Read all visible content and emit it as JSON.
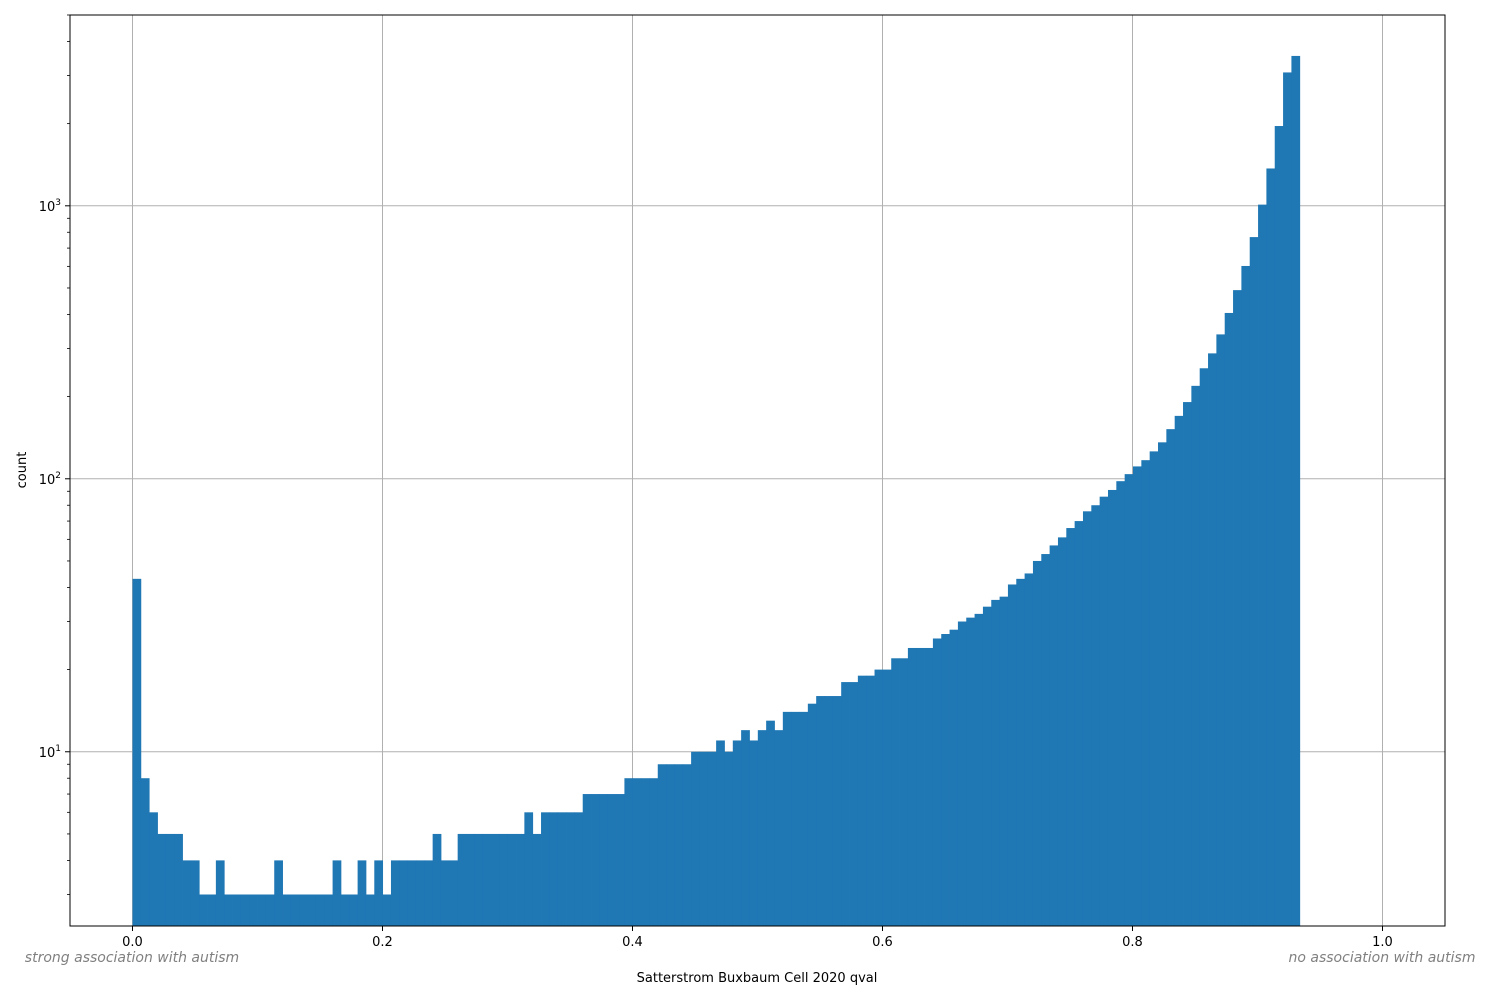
{
  "chart_data": {
    "type": "bar",
    "title": "",
    "xlabel": "Satterstrom Buxbaum Cell 2020 qval",
    "ylabel": "count",
    "xlim": [
      -0.05,
      1.05
    ],
    "ylim": [
      2.3,
      5000
    ],
    "yscale": "log",
    "grid": true,
    "bar_color": "#1f77b4",
    "bin_width": 0.00667,
    "bin_start": 0.0,
    "x_ticks": [
      {
        "value": 0.0,
        "label": "0.0"
      },
      {
        "value": 0.2,
        "label": "0.2"
      },
      {
        "value": 0.4,
        "label": "0.4"
      },
      {
        "value": 0.6,
        "label": "0.6"
      },
      {
        "value": 0.8,
        "label": "0.8"
      },
      {
        "value": 1.0,
        "label": "1.0"
      }
    ],
    "y_ticks": [
      {
        "value": 10,
        "base": "10",
        "exp": "1"
      },
      {
        "value": 100,
        "base": "10",
        "exp": "2"
      },
      {
        "value": 1000,
        "base": "10",
        "exp": "3"
      }
    ],
    "annotations": {
      "left": "strong association with autism",
      "right": "no association with autism"
    },
    "values": [
      43,
      8,
      6,
      5,
      5,
      5,
      4,
      4,
      3,
      3,
      4,
      3,
      3,
      3,
      3,
      3,
      3,
      4,
      3,
      3,
      3,
      3,
      3,
      3,
      4,
      3,
      3,
      4,
      3,
      4,
      3,
      4,
      4,
      4,
      4,
      4,
      5,
      4,
      4,
      5,
      5,
      5,
      5,
      5,
      5,
      5,
      5,
      6,
      5,
      6,
      6,
      6,
      6,
      6,
      7,
      7,
      7,
      7,
      7,
      8,
      8,
      8,
      8,
      9,
      9,
      9,
      9,
      10,
      10,
      10,
      11,
      10,
      11,
      12,
      11,
      12,
      13,
      12,
      14,
      14,
      14,
      15,
      16,
      16,
      16,
      18,
      18,
      19,
      19,
      20,
      20,
      22,
      22,
      24,
      24,
      24,
      26,
      27,
      28,
      30,
      31,
      32,
      34,
      36,
      37,
      41,
      43,
      45,
      50,
      53,
      57,
      61,
      66,
      70,
      76,
      80,
      86,
      91,
      98,
      104,
      111,
      117,
      126,
      136,
      152,
      170,
      191,
      219,
      254,
      288,
      338,
      405,
      491,
      602,
      768,
      1010,
      1370,
      1960,
      3080,
      3540
    ]
  }
}
